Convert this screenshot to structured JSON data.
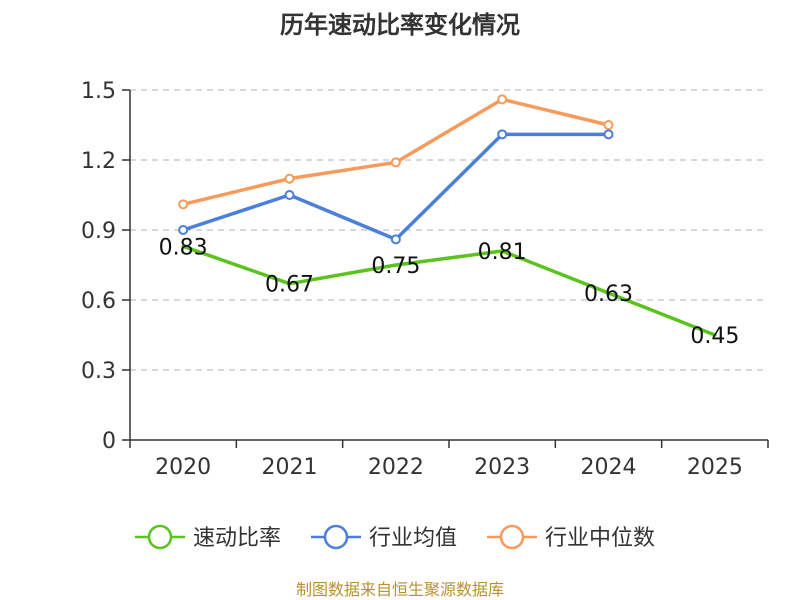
{
  "chart_data": {
    "type": "line",
    "title": "历年速动比率变化情况",
    "categories": [
      "2020",
      "2021",
      "2022",
      "2023",
      "2024",
      "2025"
    ],
    "ylim": [
      0,
      1.5
    ],
    "yticks": [
      "0",
      "0.3",
      "0.6",
      "0.9",
      "1.2",
      "1.5"
    ],
    "ytick_values": [
      0,
      0.3,
      0.6,
      0.9,
      1.2,
      1.5
    ],
    "grid": true,
    "legend_position": "bottom",
    "series": [
      {
        "name": "速动比率",
        "color": "#5bc21e",
        "values": [
          0.83,
          0.67,
          0.75,
          0.81,
          0.63,
          0.45
        ],
        "labels": [
          "0.83",
          "0.67",
          "0.75",
          "0.81",
          "0.63",
          "0.45"
        ],
        "markers": false
      },
      {
        "name": "行业均值",
        "color": "#4b7fdb",
        "values": [
          0.9,
          1.05,
          0.86,
          1.31,
          1.31,
          null
        ],
        "markers": true
      },
      {
        "name": "行业中位数",
        "color": "#f79a5c",
        "values": [
          1.01,
          1.12,
          1.19,
          1.46,
          1.35,
          null
        ],
        "markers": true
      }
    ],
    "source": "制图数据来自恒生聚源数据库"
  }
}
